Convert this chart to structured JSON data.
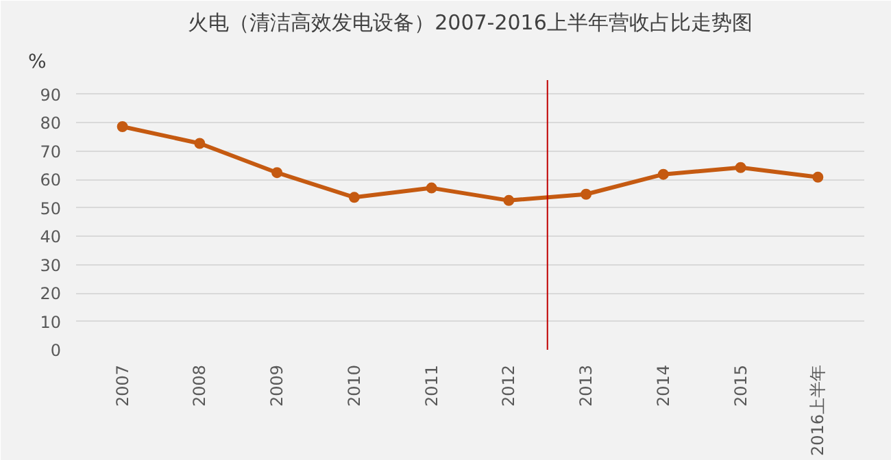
{
  "chart_data": {
    "type": "line",
    "title": "火电（清洁高效发电设备）2007-2016上半年营收占比走势图",
    "ylabel": "%",
    "categories": [
      "2007",
      "2008",
      "2009",
      "2010",
      "2011",
      "2012",
      "2013",
      "2014",
      "2015",
      "2016上半年"
    ],
    "series": [
      {
        "color": "#c55a11",
        "values": [
          78.6,
          72.7,
          62.4,
          53.7,
          57.0,
          52.6,
          54.8,
          61.8,
          64.2,
          60.8
        ]
      }
    ],
    "ylim": [
      0,
      95
    ],
    "yticks": [
      0,
      10,
      20,
      30,
      40,
      50,
      60,
      70,
      80,
      90
    ],
    "ref_lines": [
      {
        "axis": "x",
        "value": "2013",
        "color": "#c00000"
      }
    ],
    "grid": "y",
    "marker": "circle"
  }
}
